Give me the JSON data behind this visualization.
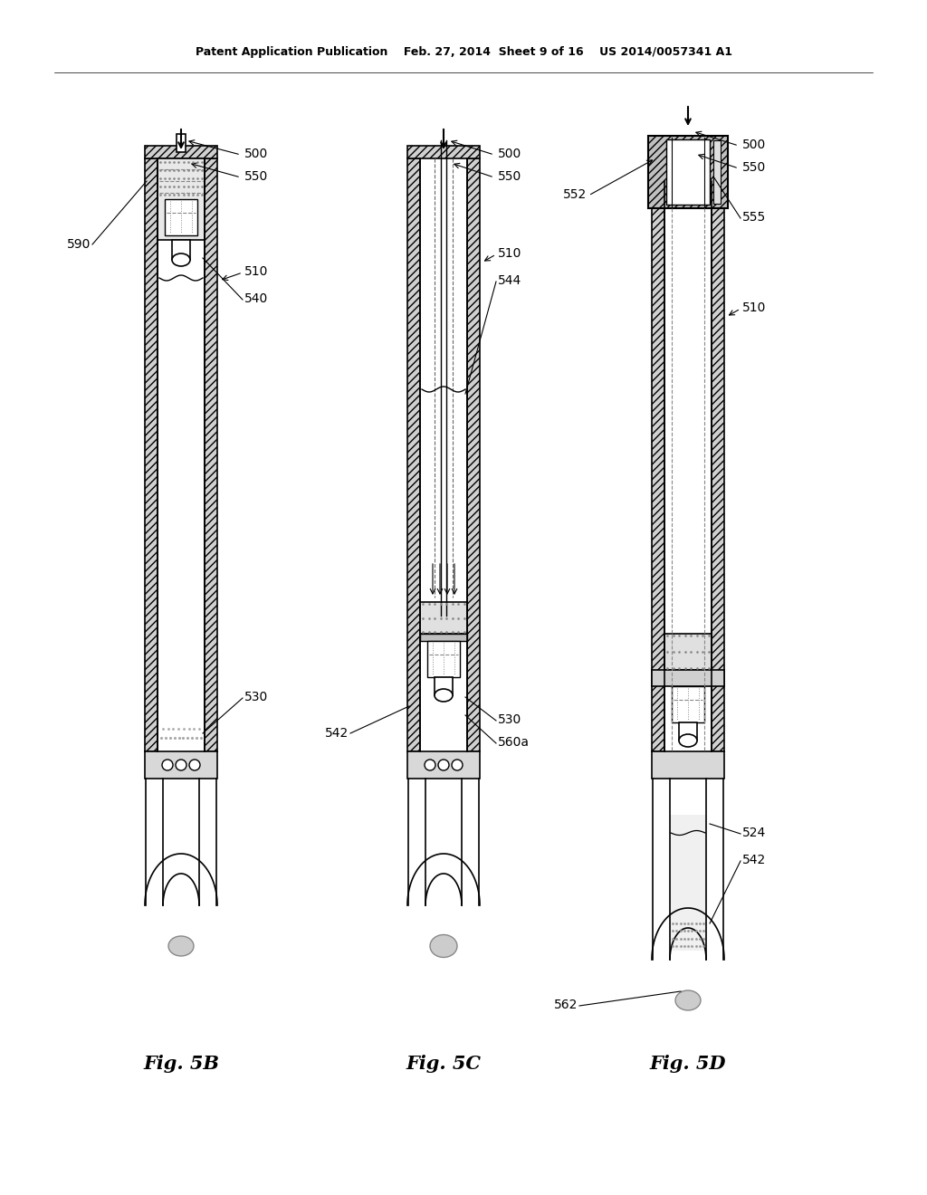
{
  "bg_color": "#ffffff",
  "header_line1": "Patent Application Publication",
  "header_line2": "Feb. 27, 2014  Sheet 9 of 16",
  "header_line3": "US 2014/0057341 A1",
  "fig5b_label": "Fig. 5B",
  "fig5c_label": "Fig. 5C",
  "fig5d_label": "Fig. 5D",
  "fig_width": 10.24,
  "fig_height": 13.2
}
